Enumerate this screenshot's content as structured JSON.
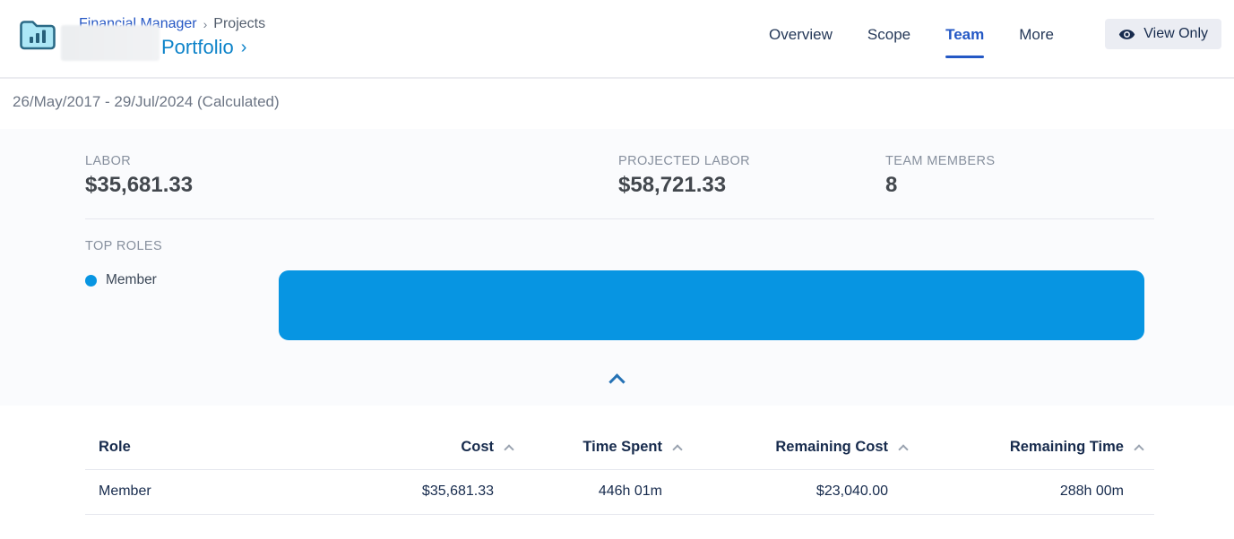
{
  "header": {
    "breadcrumb": {
      "separator": "›",
      "items": [
        {
          "label": "Financial Manager"
        },
        {
          "label": "Projects"
        }
      ]
    },
    "title": "Portfolio",
    "title_chevron": "›",
    "tabs": [
      {
        "label": "Overview",
        "active": false
      },
      {
        "label": "Scope",
        "active": false
      },
      {
        "label": "Team",
        "active": true
      },
      {
        "label": "More",
        "active": false
      }
    ],
    "view_only_button": {
      "label": "View Only",
      "icon": "eye-icon"
    }
  },
  "date_range": "26/May/2017 - 29/Jul/2024 (Calculated)",
  "summary": {
    "stats": [
      {
        "label": "LABOR",
        "value": "$35,681.33"
      },
      {
        "label": "PROJECTED LABOR",
        "value": "$58,721.33"
      },
      {
        "label": "TEAM MEMBERS",
        "value": "8"
      }
    ],
    "top_roles_label": "TOP ROLES"
  },
  "chart_data": {
    "type": "bar",
    "orientation": "horizontal",
    "title": "TOP ROLES",
    "categories": [
      "Member"
    ],
    "values": [
      100
    ],
    "value_unit": "percent-of-width",
    "colors": [
      "#0795e2"
    ],
    "legend": [
      "Member"
    ],
    "legend_position": "left",
    "grid": false
  },
  "collapse_control": {
    "icon": "chevron-up-icon"
  },
  "table": {
    "columns": [
      {
        "label": "Role",
        "sortable": false
      },
      {
        "label": "Cost",
        "sortable": true
      },
      {
        "label": "Time Spent",
        "sortable": true
      },
      {
        "label": "Remaining Cost",
        "sortable": true
      },
      {
        "label": "Remaining Time",
        "sortable": true
      }
    ],
    "rows": [
      {
        "role": "Member",
        "cost": "$35,681.33",
        "time_spent": "446h 01m",
        "remaining_cost": "$23,040.00",
        "remaining_time": "288h 00m"
      }
    ]
  },
  "colors": {
    "chart_blue": "#0795e2",
    "link_blue": "#2456c4",
    "title_blue": "#0d83c9",
    "active_tab_blue": "#2458c5",
    "table_text_navy": "#172b4d",
    "muted_label_gray": "#87909e",
    "panel_background": "#fafbfd",
    "view_only_bg": "#ebedf3"
  }
}
